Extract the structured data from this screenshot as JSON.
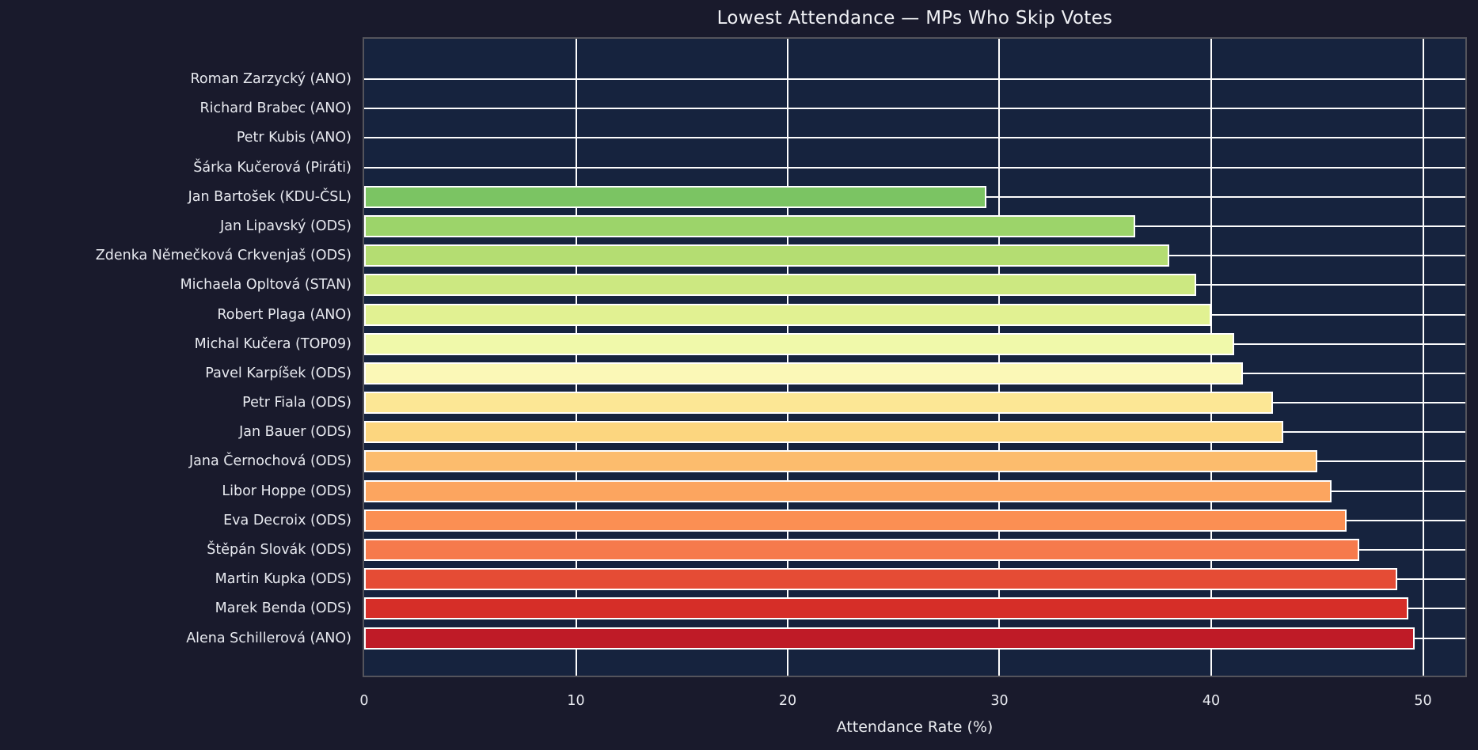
{
  "title": "Lowest Attendance — MPs Who Skip Votes",
  "colors": {
    "figure_background": "#191a2c",
    "axes_background": "#16233e",
    "grid": "#fdfdfd",
    "bar_edge": "#ffffff",
    "spine": "#54545c",
    "text": "#e8eaf0"
  },
  "chart_data": {
    "type": "bar",
    "orientation": "horizontal",
    "title": "Lowest Attendance — MPs Who Skip Votes",
    "xlabel": "Attendance Rate (%)",
    "ylabel": "",
    "xlim": [
      0,
      52
    ],
    "xticks": [
      0,
      10,
      20,
      30,
      40,
      50
    ],
    "grid": true,
    "legend": false,
    "categories": [
      "Roman Zarzycký (ANO)",
      "Richard Brabec (ANO)",
      "Petr Kubis (ANO)",
      "Šárka Kučerová (Piráti)",
      "Jan Bartošek (KDU-ČSL)",
      "Jan Lipavský (ODS)",
      "Zdenka Němečková Crkvenjaš (ODS)",
      "Michaela Opltová (STAN)",
      "Robert Plaga (ANO)",
      "Michal Kučera (TOP09)",
      "Pavel Karpíšek (ODS)",
      "Petr Fiala (ODS)",
      "Jan Bauer (ODS)",
      "Jana Černochová (ODS)",
      "Libor Hoppe (ODS)",
      "Eva Decroix (ODS)",
      "Štěpán Slovák (ODS)",
      "Martin Kupka (ODS)",
      "Marek Benda (ODS)",
      "Alena Schillerová (ANO)"
    ],
    "values": [
      0,
      0,
      0,
      0,
      29.4,
      36.4,
      38.0,
      39.3,
      40.0,
      41.1,
      41.5,
      42.9,
      43.4,
      45.0,
      45.7,
      46.4,
      47.0,
      48.8,
      49.3,
      49.6
    ],
    "bar_colors": [
      null,
      null,
      null,
      null,
      "#7bc463",
      "#9cd46a",
      "#b4dd72",
      "#cce881",
      "#e1f192",
      "#f0f9aa",
      "#fbf8b7",
      "#fce795",
      "#fcd67f",
      "#fcbc6d",
      "#fca55f",
      "#fb8f53",
      "#f67a4c",
      "#e54c35",
      "#d62e28",
      "#bf1b27"
    ]
  }
}
